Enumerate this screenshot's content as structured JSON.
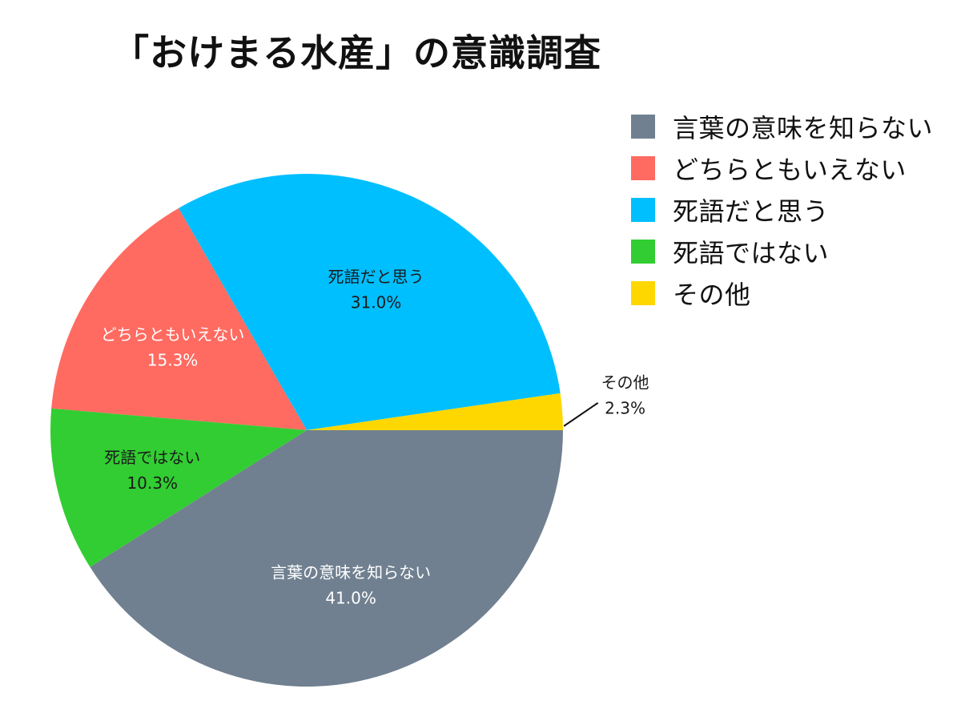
{
  "chart_data": {
    "type": "pie",
    "title": "「おけまる水産」の意識調査",
    "slices": [
      {
        "label": "言葉の意味を知らない",
        "value": 41.0,
        "value_text": "41.0%",
        "color": "#708090",
        "label_color": "#ffffff"
      },
      {
        "label": "どちらともいえない",
        "value": 15.3,
        "value_text": "15.3%",
        "color": "#ff6b61",
        "label_color": "#ffffff"
      },
      {
        "label": "死語だと思う",
        "value": 31.0,
        "value_text": "31.0%",
        "color": "#00bfff",
        "label_color": "#1a1a1a"
      },
      {
        "label": "死語ではない",
        "value": 10.3,
        "value_text": "10.3%",
        "color": "#32cd32",
        "label_color": "#1a1a1a"
      },
      {
        "label": "その他",
        "value": 2.3,
        "value_text": "2.3%",
        "color": "#ffd700",
        "label_color": "#1a1a1a"
      }
    ],
    "legend": {
      "placement": "top-right",
      "entries": [
        "言葉の意味を知らない",
        "どちらともいえない",
        "死語だと思う",
        "死語ではない",
        "その他"
      ]
    }
  }
}
